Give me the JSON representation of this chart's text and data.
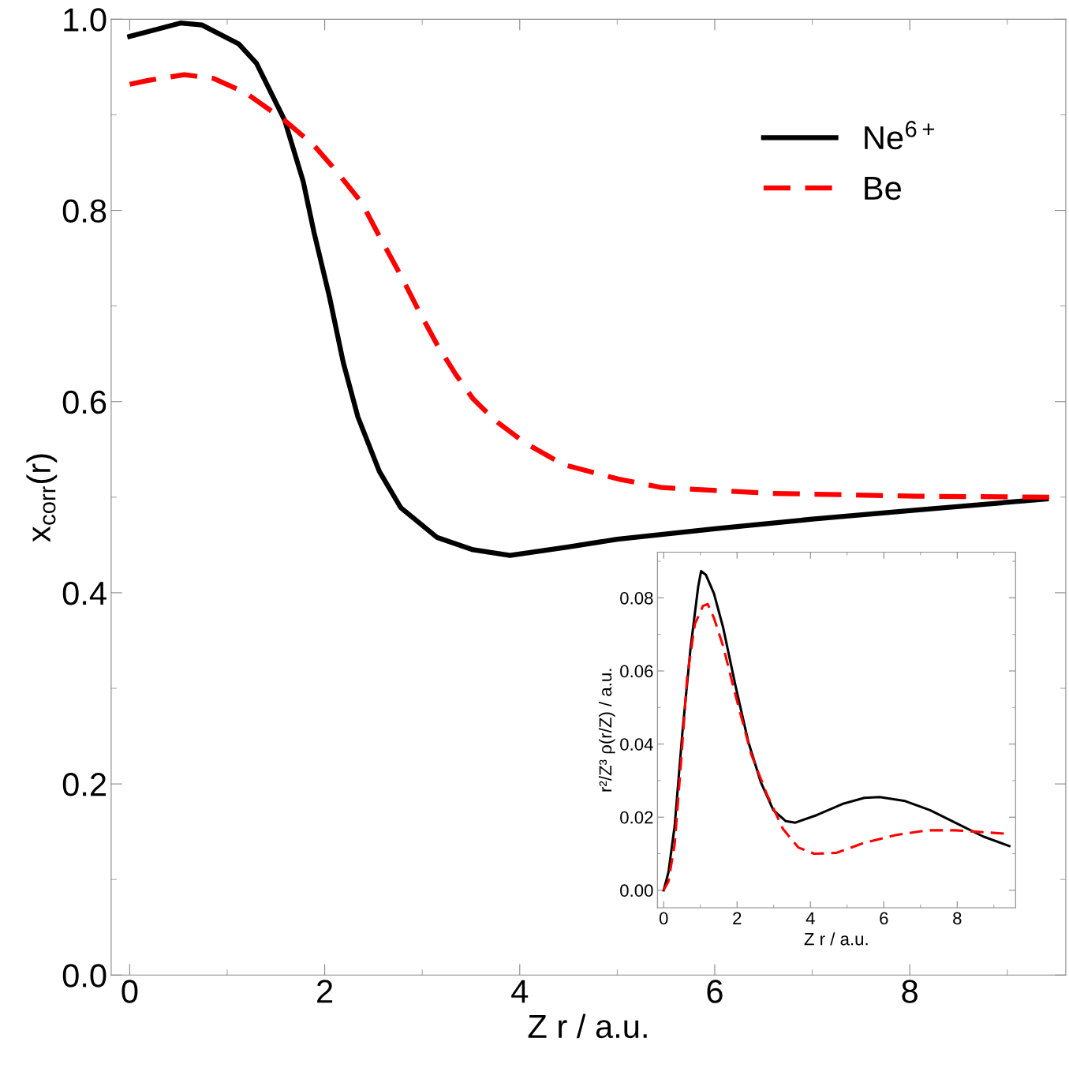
{
  "chart_data": [
    {
      "type": "line",
      "xlabel": "Z r / a.u.",
      "ylabel": "x$_{corr}$(r)",
      "xlim": [
        -0.19,
        9.6
      ],
      "ylim": [
        0,
        1
      ],
      "xticks": [
        0,
        2,
        4,
        6,
        8
      ],
      "yticks": [
        {
          "value": 0,
          "label": "0.0"
        },
        {
          "value": 0.2,
          "label": "0.2"
        },
        {
          "value": 0.4,
          "label": "0.4"
        },
        {
          "value": 0.6,
          "label": "0.6"
        },
        {
          "value": 0.8,
          "label": "0.8"
        },
        {
          "value": 1,
          "label": "1.0"
        }
      ],
      "legend": "top right",
      "grid": false,
      "marker": "none",
      "series": [
        {
          "name": "Ne$^{6+}$",
          "color": "#000000",
          "line_style": "solid",
          "x": [
            0,
            0.19,
            0.52,
            0.74,
            1.12,
            1.3,
            1.59,
            1.78,
            1.89,
            2.05,
            2.19,
            2.34,
            2.56,
            2.78,
            3.15,
            3.52,
            3.9,
            4.5,
            5,
            6,
            7,
            8,
            9.4
          ],
          "values": [
            0.982,
            0.987,
            0.996,
            0.994,
            0.974,
            0.954,
            0.894,
            0.83,
            0.777,
            0.709,
            0.641,
            0.584,
            0.527,
            0.489,
            0.458,
            0.445,
            0.439,
            0.448,
            0.456,
            0.467,
            0.477,
            0.486,
            0.498
          ]
        },
        {
          "name": "Be",
          "color": "#ff0000",
          "line_style": "dashed",
          "x": [
            0,
            0.19,
            0.56,
            0.86,
            1.19,
            1.59,
            1.89,
            2.12,
            2.38,
            2.56,
            2.78,
            2.97,
            3.15,
            3.34,
            3.52,
            3.75,
            4.05,
            4.45,
            5.01,
            5.46,
            6.58,
            8.07,
            9.43
          ],
          "values": [
            0.932,
            0.936,
            0.942,
            0.938,
            0.923,
            0.894,
            0.868,
            0.841,
            0.808,
            0.773,
            0.732,
            0.694,
            0.66,
            0.629,
            0.603,
            0.58,
            0.557,
            0.534,
            0.519,
            0.51,
            0.504,
            0.501,
            0.5
          ]
        }
      ]
    },
    {
      "type": "line",
      "xlabel": "Z r / a.u.",
      "ylabel": "r²/Z³ ρ(r/Z) / a.u.",
      "xlim": [
        -0.17,
        9.59
      ],
      "ylim": [
        -0.0048,
        0.0925
      ],
      "xticks": [
        0,
        2,
        4,
        6,
        8
      ],
      "yticks": [
        {
          "value": 0,
          "label": "0.00"
        },
        {
          "value": 0.02,
          "label": "0.02"
        },
        {
          "value": 0.04,
          "label": "0.04"
        },
        {
          "value": 0.06,
          "label": "0.06"
        },
        {
          "value": 0.08,
          "label": "0.08"
        }
      ],
      "grid": false,
      "marker": "none",
      "series": [
        {
          "color": "#000000",
          "line_style": "solid",
          "x": [
            0,
            0.13,
            0.3,
            0.51,
            0.73,
            0.94,
            1.02,
            1.15,
            1.37,
            1.62,
            1.96,
            2.31,
            2.65,
            2.99,
            3.33,
            3.59,
            4.18,
            4.87,
            5.47,
            5.89,
            6.58,
            7.26,
            8.03,
            8.71,
            9.42
          ],
          "values": [
            0,
            0.0049,
            0.0176,
            0.0431,
            0.066,
            0.083,
            0.0873,
            0.0863,
            0.0812,
            0.0719,
            0.0558,
            0.0405,
            0.0295,
            0.0219,
            0.0189,
            0.0185,
            0.0206,
            0.0236,
            0.0253,
            0.0255,
            0.0244,
            0.0219,
            0.0181,
            0.0147,
            0.0121
          ]
        },
        {
          "color": "#ff0000",
          "line_style": "dashed",
          "x": [
            0,
            0.13,
            0.3,
            0.47,
            0.64,
            0.85,
            1.07,
            1.2,
            1.37,
            1.62,
            1.96,
            2.39,
            2.82,
            3.25,
            3.67,
            4.1,
            4.7,
            5.47,
            6.32,
            7.17,
            7.94,
            8.71,
            9.27
          ],
          "values": [
            0,
            0.0024,
            0.0126,
            0.0346,
            0.0583,
            0.0728,
            0.0778,
            0.0783,
            0.0745,
            0.0668,
            0.0533,
            0.0371,
            0.0261,
            0.0168,
            0.0117,
            0.01,
            0.0102,
            0.013,
            0.0151,
            0.0164,
            0.0164,
            0.0159,
            0.0155
          ]
        }
      ]
    }
  ]
}
